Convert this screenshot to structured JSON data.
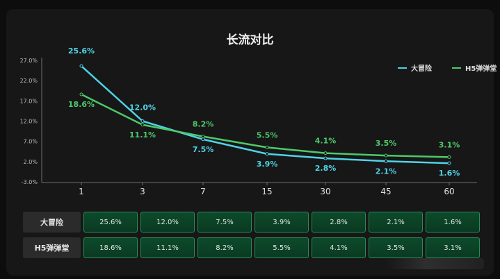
{
  "chart_data": {
    "type": "line",
    "title": "长流对比",
    "categories": [
      "1",
      "3",
      "7",
      "15",
      "30",
      "45",
      "60"
    ],
    "y_ticks": [
      "27.0%",
      "22.0%",
      "17.0%",
      "12.0%",
      "7.0%",
      "2.0%",
      "-3.0%"
    ],
    "ylim": [
      -3,
      27
    ],
    "series": [
      {
        "name": "大冒险",
        "color": "#4fd3e6",
        "values": [
          25.6,
          12.0,
          7.5,
          3.9,
          2.8,
          2.1,
          1.6
        ],
        "labels": [
          "25.6%",
          "12.0%",
          "7.5%",
          "3.9%",
          "2.8%",
          "2.1%",
          "1.6%"
        ]
      },
      {
        "name": "H5弹弹堂",
        "color": "#4ec96a",
        "values": [
          18.6,
          11.1,
          8.2,
          5.5,
          4.1,
          3.5,
          3.1
        ],
        "labels": [
          "18.6%",
          "11.1%",
          "8.2%",
          "5.5%",
          "4.1%",
          "3.5%",
          "3.1%"
        ]
      }
    ],
    "legend_position": "top-right"
  },
  "table": {
    "rows": [
      {
        "label": "大冒险",
        "cells": [
          "25.6%",
          "12.0%",
          "7.5%",
          "3.9%",
          "2.8%",
          "2.1%",
          "1.6%"
        ]
      },
      {
        "label": "H5弹弹堂",
        "cells": [
          "18.6%",
          "11.1%",
          "8.2%",
          "5.5%",
          "4.1%",
          "3.5%",
          "3.1%"
        ]
      }
    ]
  }
}
